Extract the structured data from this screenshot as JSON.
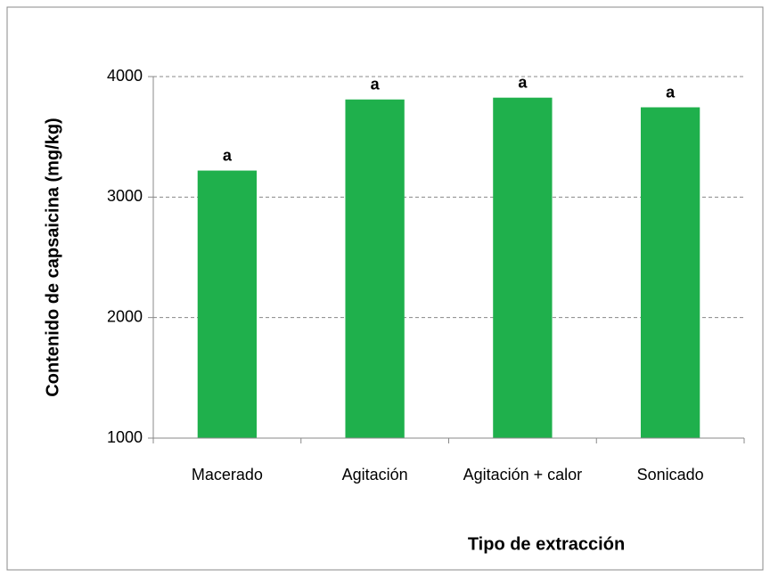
{
  "chart_data": {
    "type": "bar",
    "x_label": "Tipo de extracción",
    "y_label": "Contenido de capsaicina (mg/kg)",
    "categories": [
      "Macerado",
      "Agitación",
      "Agitación + calor",
      "Sonicado"
    ],
    "values": [
      3220,
      3810,
      3825,
      3745
    ],
    "significance_labels": [
      "a",
      "a",
      "a",
      "a"
    ],
    "color": "#1fb04c",
    "ylim": [
      1000,
      4000
    ],
    "yticks": [
      1000,
      2000,
      3000,
      4000
    ],
    "grid": true
  }
}
